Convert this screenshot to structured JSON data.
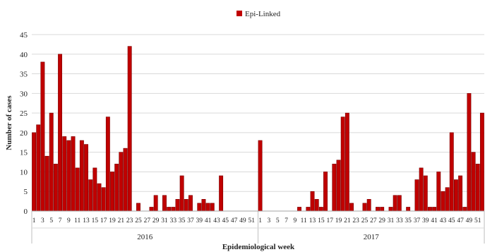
{
  "chart_data": {
    "type": "bar",
    "xlabel": "Epidemiological week",
    "ylabel": "Number of cases",
    "ylim": [
      0,
      45
    ],
    "yticks": [
      0,
      5,
      10,
      15,
      20,
      25,
      30,
      35,
      40,
      45
    ],
    "grid": true,
    "legend_position": "top-center",
    "bar_color": "#c00000",
    "series": [
      {
        "name": "Epi-Linked",
        "groups": [
          {
            "label": "2016",
            "weeks": [
              1,
              2,
              3,
              4,
              5,
              6,
              7,
              8,
              9,
              10,
              11,
              12,
              13,
              14,
              15,
              16,
              17,
              18,
              19,
              20,
              21,
              22,
              23,
              24,
              25,
              26,
              27,
              28,
              29,
              30,
              31,
              32,
              33,
              34,
              35,
              36,
              37,
              38,
              39,
              40,
              41,
              42,
              43,
              44,
              45,
              46,
              47,
              48,
              49,
              50,
              51,
              52
            ],
            "values": [
              20,
              22,
              38,
              14,
              25,
              12,
              40,
              19,
              18,
              19,
              11,
              18,
              17,
              8,
              11,
              7,
              6,
              24,
              10,
              12,
              15,
              16,
              42,
              0,
              2,
              0,
              0,
              1,
              4,
              0,
              4,
              1,
              1,
              3,
              9,
              3,
              4,
              0,
              2,
              3,
              2,
              2,
              0,
              9,
              0,
              0,
              0,
              0,
              0,
              0,
              0,
              0
            ],
            "tick_labels": [
              "1",
              "3",
              "5",
              "7",
              "9",
              "11",
              "13",
              "15",
              "17",
              "19",
              "21",
              "23",
              "25",
              "27",
              "29",
              "31",
              "33",
              "35",
              "37",
              "39",
              "41",
              "43",
              "45",
              "47",
              "49",
              "51"
            ]
          },
          {
            "label": "2017",
            "weeks": [
              1,
              2,
              3,
              4,
              5,
              6,
              7,
              8,
              9,
              10,
              11,
              12,
              13,
              14,
              15,
              16,
              17,
              18,
              19,
              20,
              21,
              22,
              23,
              24,
              25,
              26,
              27,
              28,
              29,
              30,
              31,
              32,
              33,
              34,
              35,
              36,
              37,
              38,
              39,
              40,
              41,
              42,
              43,
              44,
              45,
              46,
              47,
              48,
              49,
              50,
              51,
              52
            ],
            "values": [
              18,
              0,
              0,
              0,
              0,
              0,
              0,
              0,
              0,
              1,
              0,
              1,
              5,
              3,
              1,
              10,
              0,
              12,
              13,
              24,
              25,
              2,
              0,
              0,
              2,
              3,
              0,
              1,
              1,
              0,
              1,
              4,
              4,
              0,
              1,
              0,
              8,
              11,
              9,
              1,
              1,
              10,
              5,
              6,
              20,
              8,
              9,
              1,
              30,
              15,
              12,
              25
            ],
            "tick_labels": [
              "1",
              "3",
              "5",
              "7",
              "9",
              "11",
              "13",
              "15",
              "17",
              "19",
              "21",
              "23",
              "25",
              "27",
              "29",
              "31",
              "33",
              "35",
              "37",
              "39",
              "41",
              "43",
              "45",
              "47",
              "49",
              "51"
            ]
          }
        ]
      }
    ]
  }
}
